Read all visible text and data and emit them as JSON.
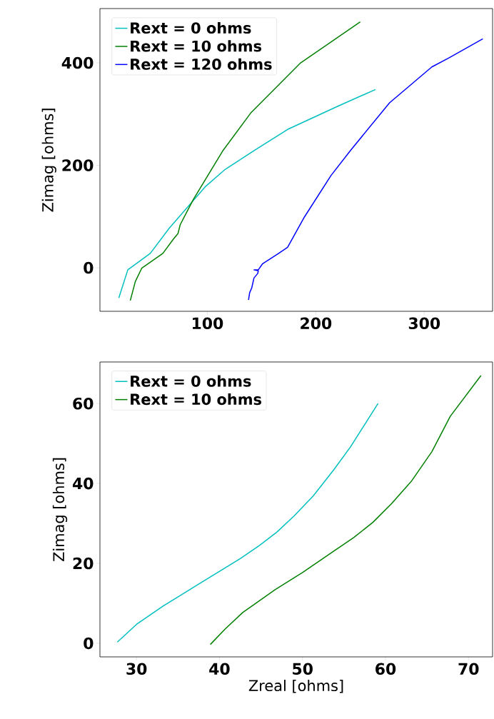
{
  "chart_data": [
    {
      "type": "line",
      "ylabel": "Zimag [ohms]",
      "xlim": [
        1,
        363
      ],
      "ylim": [
        -85,
        506
      ],
      "xticks": [
        100,
        200,
        300
      ],
      "yticks": [
        0,
        200,
        400
      ],
      "legend": "top left",
      "series": [
        {
          "name": "Rext = 0 ohms",
          "color": "#00bfbf",
          "x": [
            18.4,
            26.7,
            47.4,
            64.8,
            98,
            116.4,
            143.4,
            174,
            220,
            255
          ],
          "values": [
            -59,
            -4,
            28,
            77,
            158,
            192,
            229,
            270,
            315,
            348
          ]
        },
        {
          "name": "Rext = 10 ohms",
          "color": "#008000",
          "x": [
            29,
            33.6,
            39.5,
            59,
            68.4,
            73,
            75,
            87,
            114.5,
            140,
            186,
            241
          ],
          "values": [
            -64,
            -27,
            -1,
            28,
            55,
            67,
            84,
            133,
            229,
            302,
            400,
            480
          ]
        },
        {
          "name": "Rext = 120 ohms",
          "color": "#0000ff",
          "x": [
            138,
            139,
            141,
            143,
            146.5,
            147,
            143,
            147,
            151,
            165,
            174,
            189.5,
            214,
            232,
            268,
            307,
            323,
            354
          ],
          "values": [
            -63,
            -49,
            -39,
            -20,
            -11,
            -6,
            -4,
            -4,
            8,
            27,
            40,
            99,
            180,
            229,
            322,
            392,
            410,
            447
          ]
        }
      ]
    },
    {
      "type": "line",
      "xlabel": "Zreal [ohms]",
      "ylabel": "Zimag [ohms]",
      "xlim": [
        25.6,
        72.9
      ],
      "ylim": [
        -3.4,
        70.4
      ],
      "xticks": [
        30,
        40,
        50,
        60,
        70
      ],
      "yticks": [
        0,
        20,
        40,
        60
      ],
      "legend": "top left",
      "series": [
        {
          "name": "Rext = 0 ohms",
          "color": "#00bfbf",
          "x": [
            27.7,
            30.1,
            33.2,
            37.1,
            42.5,
            44.7,
            46.9,
            49.0,
            51.3,
            53.8,
            55.8,
            59.1
          ],
          "values": [
            0.3,
            4.9,
            9.3,
            14.3,
            21.2,
            24.3,
            27.8,
            31.9,
            36.9,
            43.5,
            49.2,
            60
          ]
        },
        {
          "name": "Rext = 10 ohms",
          "color": "#008000",
          "x": [
            38.9,
            40.7,
            42.8,
            46.7,
            50.0,
            53.8,
            56.2,
            58.5,
            60.7,
            63.1,
            65.6,
            67.8,
            71.5
          ],
          "values": [
            -0.3,
            3.6,
            7.7,
            13.4,
            17.7,
            23.1,
            26.5,
            30.3,
            34.9,
            40.5,
            48.0,
            56.8,
            67.0
          ]
        }
      ]
    }
  ]
}
